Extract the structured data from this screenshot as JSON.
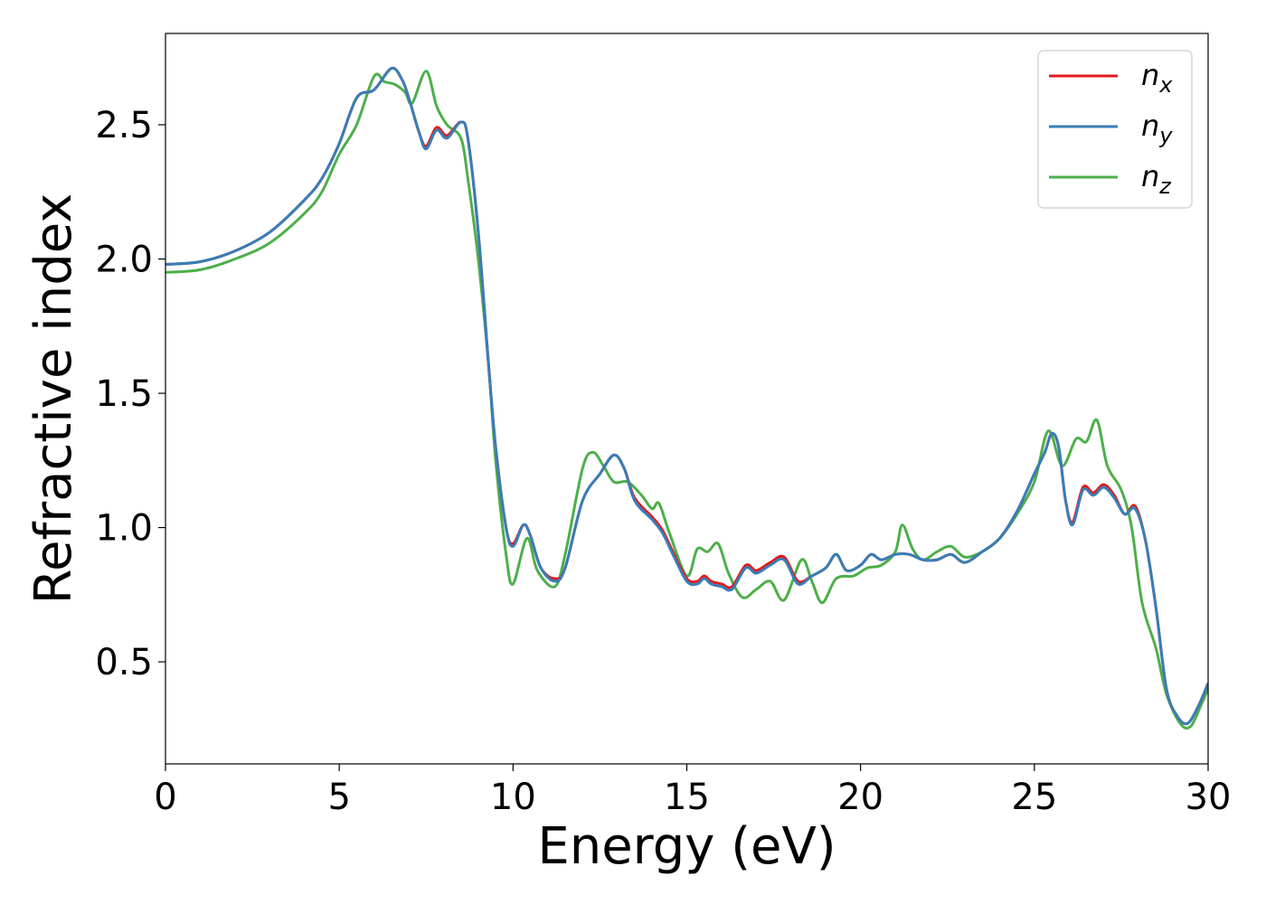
{
  "chart_data": {
    "type": "line",
    "title": "",
    "xlabel": "Energy (eV)",
    "ylabel": "Refractive index",
    "xlim": [
      0,
      30
    ],
    "ylim": [
      0.12,
      2.84
    ],
    "xticks": [
      0,
      5,
      10,
      15,
      20,
      25,
      30
    ],
    "xtick_labels": [
      "0",
      "5",
      "10",
      "15",
      "20",
      "25",
      "30"
    ],
    "yticks": [
      0.5,
      1.0,
      1.5,
      2.0,
      2.5
    ],
    "ytick_labels": [
      "0.5",
      "1.0",
      "1.5",
      "2.0",
      "2.5"
    ],
    "grid": false,
    "legend_position": "top-right",
    "series": [
      {
        "name": "n_x",
        "label_base": "n",
        "label_sub": "x",
        "color": "#e41a1c",
        "points": [
          [
            0,
            1.98
          ],
          [
            1,
            1.99
          ],
          [
            2,
            2.03
          ],
          [
            3,
            2.1
          ],
          [
            4,
            2.22
          ],
          [
            4.5,
            2.3
          ],
          [
            5,
            2.43
          ],
          [
            5.5,
            2.6
          ],
          [
            6,
            2.63
          ],
          [
            6.5,
            2.71
          ],
          [
            6.8,
            2.67
          ],
          [
            7,
            2.6
          ],
          [
            7.3,
            2.47
          ],
          [
            7.5,
            2.42
          ],
          [
            7.8,
            2.49
          ],
          [
            8.1,
            2.46
          ],
          [
            8.5,
            2.51
          ],
          [
            8.7,
            2.45
          ],
          [
            9,
            2.1
          ],
          [
            9.3,
            1.6
          ],
          [
            9.5,
            1.3
          ],
          [
            9.8,
            1.0
          ],
          [
            10,
            0.94
          ],
          [
            10.3,
            1.01
          ],
          [
            10.5,
            0.97
          ],
          [
            10.8,
            0.85
          ],
          [
            11.2,
            0.81
          ],
          [
            11.5,
            0.85
          ],
          [
            12,
            1.1
          ],
          [
            12.5,
            1.2
          ],
          [
            12.9,
            1.27
          ],
          [
            13.2,
            1.22
          ],
          [
            13.5,
            1.11
          ],
          [
            14,
            1.04
          ],
          [
            14.3,
            0.99
          ],
          [
            14.6,
            0.91
          ],
          [
            15,
            0.81
          ],
          [
            15.3,
            0.8
          ],
          [
            15.5,
            0.82
          ],
          [
            15.7,
            0.8
          ],
          [
            16,
            0.79
          ],
          [
            16.3,
            0.78
          ],
          [
            16.7,
            0.86
          ],
          [
            17,
            0.84
          ],
          [
            17.4,
            0.87
          ],
          [
            17.8,
            0.89
          ],
          [
            18.2,
            0.8
          ],
          [
            18.6,
            0.82
          ],
          [
            19,
            0.85
          ],
          [
            19.3,
            0.9
          ],
          [
            19.6,
            0.84
          ],
          [
            20,
            0.86
          ],
          [
            20.3,
            0.9
          ],
          [
            20.6,
            0.88
          ],
          [
            21,
            0.9
          ],
          [
            21.4,
            0.9
          ],
          [
            21.8,
            0.88
          ],
          [
            22.2,
            0.88
          ],
          [
            22.6,
            0.9
          ],
          [
            23,
            0.87
          ],
          [
            23.5,
            0.91
          ],
          [
            24,
            0.96
          ],
          [
            24.5,
            1.06
          ],
          [
            25,
            1.2
          ],
          [
            25.3,
            1.28
          ],
          [
            25.5,
            1.35
          ],
          [
            25.7,
            1.3
          ],
          [
            25.9,
            1.1
          ],
          [
            26.1,
            1.02
          ],
          [
            26.4,
            1.15
          ],
          [
            26.7,
            1.13
          ],
          [
            27,
            1.16
          ],
          [
            27.3,
            1.12
          ],
          [
            27.6,
            1.05
          ],
          [
            27.9,
            1.08
          ],
          [
            28.2,
            0.95
          ],
          [
            28.5,
            0.7
          ],
          [
            28.8,
            0.4
          ],
          [
            29.1,
            0.3
          ],
          [
            29.4,
            0.27
          ],
          [
            29.7,
            0.33
          ],
          [
            30,
            0.42
          ]
        ]
      },
      {
        "name": "n_y",
        "label_base": "n",
        "label_sub": "y",
        "color": "#377eb8",
        "points": [
          [
            0,
            1.98
          ],
          [
            1,
            1.99
          ],
          [
            2,
            2.03
          ],
          [
            3,
            2.1
          ],
          [
            4,
            2.22
          ],
          [
            4.5,
            2.3
          ],
          [
            5,
            2.43
          ],
          [
            5.5,
            2.6
          ],
          [
            6,
            2.63
          ],
          [
            6.5,
            2.71
          ],
          [
            6.8,
            2.67
          ],
          [
            7,
            2.6
          ],
          [
            7.3,
            2.47
          ],
          [
            7.5,
            2.41
          ],
          [
            7.8,
            2.48
          ],
          [
            8.1,
            2.45
          ],
          [
            8.5,
            2.51
          ],
          [
            8.7,
            2.45
          ],
          [
            9,
            2.1
          ],
          [
            9.3,
            1.6
          ],
          [
            9.5,
            1.3
          ],
          [
            9.8,
            1.0
          ],
          [
            10,
            0.93
          ],
          [
            10.3,
            1.01
          ],
          [
            10.5,
            0.97
          ],
          [
            10.8,
            0.85
          ],
          [
            11.2,
            0.8
          ],
          [
            11.5,
            0.85
          ],
          [
            12,
            1.1
          ],
          [
            12.5,
            1.2
          ],
          [
            12.9,
            1.27
          ],
          [
            13.2,
            1.22
          ],
          [
            13.5,
            1.1
          ],
          [
            14,
            1.03
          ],
          [
            14.3,
            0.98
          ],
          [
            14.6,
            0.9
          ],
          [
            15,
            0.8
          ],
          [
            15.3,
            0.79
          ],
          [
            15.5,
            0.81
          ],
          [
            15.7,
            0.79
          ],
          [
            16,
            0.78
          ],
          [
            16.3,
            0.77
          ],
          [
            16.7,
            0.85
          ],
          [
            17,
            0.83
          ],
          [
            17.4,
            0.86
          ],
          [
            17.8,
            0.88
          ],
          [
            18.2,
            0.79
          ],
          [
            18.6,
            0.82
          ],
          [
            19,
            0.85
          ],
          [
            19.3,
            0.9
          ],
          [
            19.6,
            0.84
          ],
          [
            20,
            0.86
          ],
          [
            20.3,
            0.9
          ],
          [
            20.6,
            0.88
          ],
          [
            21,
            0.9
          ],
          [
            21.4,
            0.9
          ],
          [
            21.8,
            0.88
          ],
          [
            22.2,
            0.88
          ],
          [
            22.6,
            0.9
          ],
          [
            23,
            0.87
          ],
          [
            23.5,
            0.91
          ],
          [
            24,
            0.96
          ],
          [
            24.5,
            1.06
          ],
          [
            25,
            1.2
          ],
          [
            25.3,
            1.28
          ],
          [
            25.5,
            1.35
          ],
          [
            25.7,
            1.3
          ],
          [
            25.9,
            1.1
          ],
          [
            26.1,
            1.01
          ],
          [
            26.4,
            1.14
          ],
          [
            26.7,
            1.12
          ],
          [
            27,
            1.15
          ],
          [
            27.3,
            1.11
          ],
          [
            27.6,
            1.05
          ],
          [
            27.9,
            1.07
          ],
          [
            28.2,
            0.95
          ],
          [
            28.5,
            0.7
          ],
          [
            28.8,
            0.4
          ],
          [
            29.1,
            0.3
          ],
          [
            29.4,
            0.27
          ],
          [
            29.7,
            0.33
          ],
          [
            30,
            0.42
          ]
        ]
      },
      {
        "name": "n_z",
        "label_base": "n",
        "label_sub": "z",
        "color": "#4daf4a",
        "points": [
          [
            0,
            1.95
          ],
          [
            1,
            1.96
          ],
          [
            2,
            2.0
          ],
          [
            3,
            2.06
          ],
          [
            4,
            2.17
          ],
          [
            4.5,
            2.25
          ],
          [
            5,
            2.39
          ],
          [
            5.5,
            2.5
          ],
          [
            6,
            2.68
          ],
          [
            6.3,
            2.66
          ],
          [
            6.6,
            2.65
          ],
          [
            6.9,
            2.62
          ],
          [
            7.1,
            2.58
          ],
          [
            7.5,
            2.7
          ],
          [
            7.8,
            2.57
          ],
          [
            8.1,
            2.5
          ],
          [
            8.5,
            2.45
          ],
          [
            8.7,
            2.3
          ],
          [
            9,
            2.0
          ],
          [
            9.3,
            1.6
          ],
          [
            9.5,
            1.25
          ],
          [
            9.8,
            0.9
          ],
          [
            10,
            0.79
          ],
          [
            10.4,
            0.96
          ],
          [
            10.7,
            0.84
          ],
          [
            11.2,
            0.78
          ],
          [
            11.5,
            0.9
          ],
          [
            12,
            1.22
          ],
          [
            12.3,
            1.28
          ],
          [
            12.6,
            1.23
          ],
          [
            12.9,
            1.17
          ],
          [
            13.3,
            1.17
          ],
          [
            13.7,
            1.12
          ],
          [
            14,
            1.07
          ],
          [
            14.2,
            1.09
          ],
          [
            14.5,
            0.98
          ],
          [
            15,
            0.82
          ],
          [
            15.3,
            0.92
          ],
          [
            15.6,
            0.91
          ],
          [
            15.9,
            0.94
          ],
          [
            16.2,
            0.83
          ],
          [
            16.6,
            0.74
          ],
          [
            17,
            0.77
          ],
          [
            17.4,
            0.8
          ],
          [
            17.8,
            0.73
          ],
          [
            18.3,
            0.88
          ],
          [
            18.6,
            0.8
          ],
          [
            18.9,
            0.72
          ],
          [
            19.3,
            0.81
          ],
          [
            19.8,
            0.82
          ],
          [
            20.2,
            0.85
          ],
          [
            20.6,
            0.86
          ],
          [
            21,
            0.91
          ],
          [
            21.2,
            1.01
          ],
          [
            21.5,
            0.92
          ],
          [
            21.8,
            0.88
          ],
          [
            22.2,
            0.91
          ],
          [
            22.6,
            0.93
          ],
          [
            23,
            0.89
          ],
          [
            23.5,
            0.91
          ],
          [
            24,
            0.96
          ],
          [
            24.5,
            1.05
          ],
          [
            25,
            1.17
          ],
          [
            25.4,
            1.36
          ],
          [
            25.8,
            1.23
          ],
          [
            26.2,
            1.33
          ],
          [
            26.5,
            1.32
          ],
          [
            26.8,
            1.4
          ],
          [
            27.1,
            1.23
          ],
          [
            27.5,
            1.14
          ],
          [
            27.8,
            1.0
          ],
          [
            28.1,
            0.72
          ],
          [
            28.5,
            0.55
          ],
          [
            28.8,
            0.38
          ],
          [
            29.2,
            0.27
          ],
          [
            29.5,
            0.26
          ],
          [
            29.8,
            0.34
          ],
          [
            30,
            0.4
          ]
        ]
      }
    ]
  }
}
